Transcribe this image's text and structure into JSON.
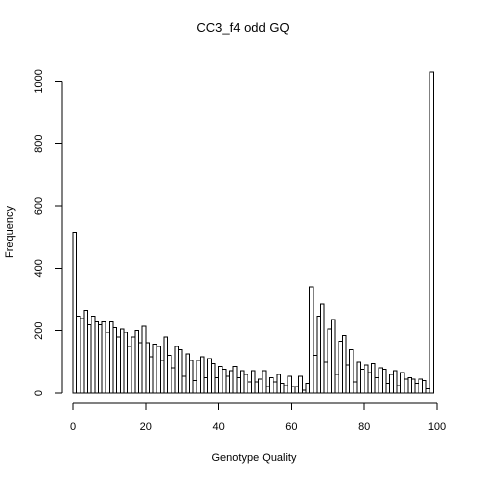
{
  "chart_data": {
    "type": "bar",
    "title": "CC3_f4 odd GQ",
    "xlabel": "Genotype Quality",
    "ylabel": "Frequency",
    "xlim": [
      0,
      100
    ],
    "ylim": [
      0,
      1030
    ],
    "xticks": [
      0,
      20,
      40,
      60,
      80,
      100
    ],
    "yticks": [
      0,
      200,
      400,
      600,
      800,
      1000
    ],
    "bin_width": 1,
    "x": [
      0,
      1,
      2,
      3,
      4,
      5,
      6,
      7,
      8,
      9,
      10,
      11,
      12,
      13,
      14,
      15,
      16,
      17,
      18,
      19,
      20,
      21,
      22,
      23,
      24,
      25,
      26,
      27,
      28,
      29,
      30,
      31,
      32,
      33,
      34,
      35,
      36,
      37,
      38,
      39,
      40,
      41,
      42,
      43,
      44,
      45,
      46,
      47,
      48,
      49,
      50,
      51,
      52,
      53,
      54,
      55,
      56,
      57,
      58,
      59,
      60,
      61,
      62,
      63,
      64,
      65,
      66,
      67,
      68,
      69,
      70,
      71,
      72,
      73,
      74,
      75,
      76,
      77,
      78,
      79,
      80,
      81,
      82,
      83,
      84,
      85,
      86,
      87,
      88,
      89,
      90,
      91,
      92,
      93,
      94,
      95,
      96,
      97,
      98
    ],
    "values": [
      515,
      245,
      240,
      265,
      220,
      245,
      230,
      220,
      230,
      195,
      230,
      210,
      180,
      205,
      195,
      150,
      180,
      200,
      160,
      215,
      160,
      115,
      155,
      150,
      105,
      180,
      120,
      80,
      150,
      140,
      55,
      125,
      105,
      40,
      105,
      115,
      50,
      110,
      95,
      50,
      85,
      75,
      55,
      70,
      85,
      50,
      70,
      60,
      35,
      70,
      35,
      45,
      70,
      20,
      50,
      35,
      60,
      30,
      25,
      55,
      20,
      20,
      55,
      10,
      30,
      340,
      120,
      245,
      285,
      100,
      205,
      235,
      60,
      165,
      185,
      90,
      140,
      35,
      100,
      75,
      90,
      65,
      95,
      50,
      80,
      75,
      30,
      60,
      70,
      25,
      65,
      45,
      50,
      45,
      30,
      45,
      40,
      15,
      1030
    ]
  }
}
